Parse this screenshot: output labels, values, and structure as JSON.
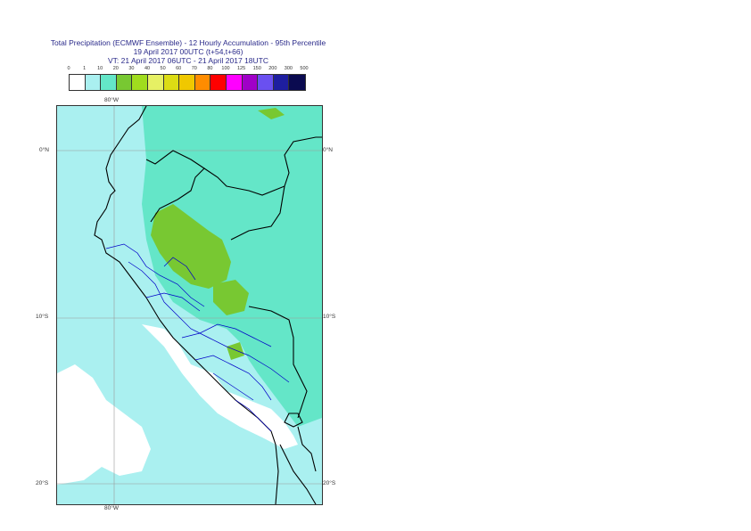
{
  "title": {
    "line1": "Total Precipitation (ECMWF Ensemble) - 12 Hourly Accumulation - 95th Percentile",
    "line2": "19 April 2017 00UTC (t+54,t+66)",
    "line3": "VT: 21 April 2017 06UTC - 21 April 2017 18UTC"
  },
  "legend": {
    "labels": [
      "0",
      "1",
      "10",
      "20",
      "30",
      "40",
      "50",
      "60",
      "70",
      "80",
      "100",
      "125",
      "150",
      "200",
      "300",
      "500"
    ],
    "colors": [
      "#ffffff",
      "#aaf0f0",
      "#64e6c8",
      "#78c832",
      "#a0dc1e",
      "#e6f064",
      "#dcdc14",
      "#f0c800",
      "#ff8c00",
      "#ff0000",
      "#ff00ff",
      "#a000c8",
      "#6a50f0",
      "#1e1ea0",
      "#0a0a50"
    ]
  },
  "map": {
    "lon_labels": {
      "top": "80°W",
      "bottom": "80°W"
    },
    "lat_labels": [
      "0°N",
      "10°S",
      "20°S"
    ],
    "colors": {
      "lightcyan": "#aaf0f0",
      "teal": "#64e6c8",
      "green": "#78c832",
      "border_black": "#000000",
      "border_blue": "#0000c8",
      "grid": "#999999"
    }
  }
}
